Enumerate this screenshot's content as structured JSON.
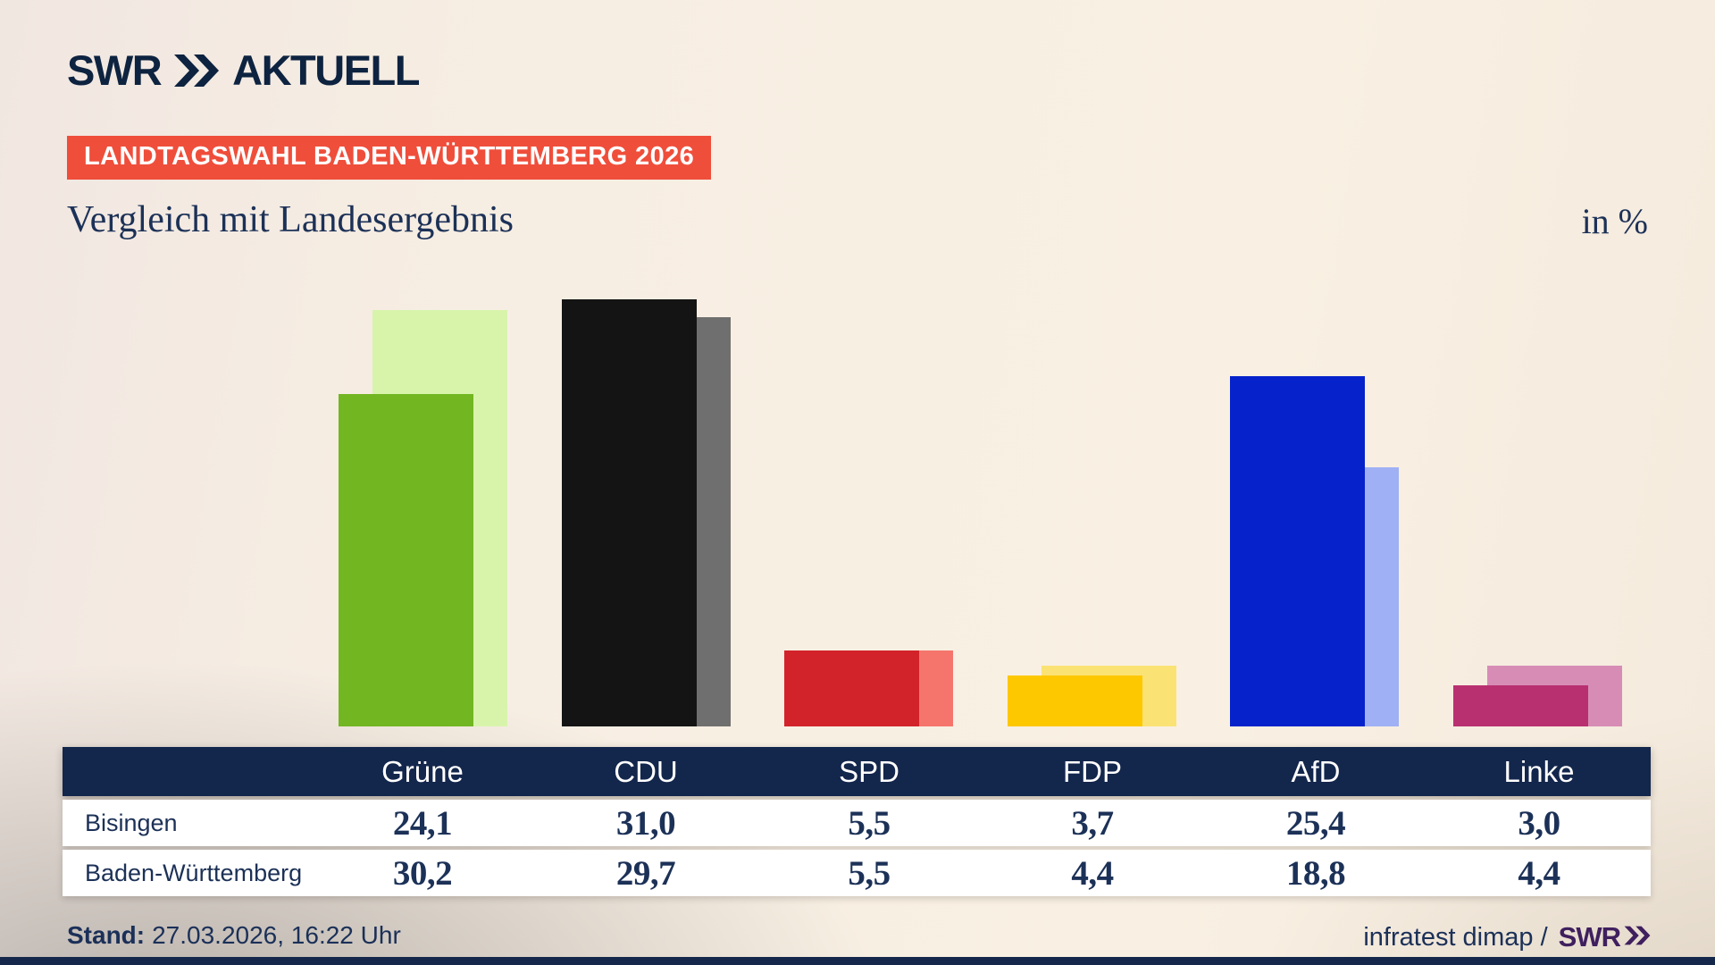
{
  "brand": {
    "swr": "SWR",
    "product": "AKTUELL"
  },
  "banner": {
    "label": "LANDTAGSWAHL BADEN-WÜRTTEMBERG 2026",
    "bg": "#ef4e3b"
  },
  "heading": {
    "title": "Vergleich mit Landesergebnis",
    "unit": "in %"
  },
  "chart_data": {
    "type": "bar",
    "categories": [
      "Grüne",
      "CDU",
      "SPD",
      "FDP",
      "AfD",
      "Linke"
    ],
    "series": [
      {
        "name": "Bisingen",
        "values": [
          24.1,
          31.0,
          5.5,
          3.7,
          25.4,
          3.0
        ]
      },
      {
        "name": "Baden-Württemberg",
        "values": [
          30.2,
          29.7,
          5.5,
          4.4,
          18.8,
          4.4
        ]
      }
    ],
    "party_colors": [
      {
        "party": "Grüne",
        "local": "#72b622",
        "state": "#d8f4ab"
      },
      {
        "party": "CDU",
        "local": "#141414",
        "state": "#6f6f6f"
      },
      {
        "party": "SPD",
        "local": "#d2232a",
        "state": "#f5756c"
      },
      {
        "party": "FDP",
        "local": "#fdc800",
        "state": "#fbe275"
      },
      {
        "party": "AfD",
        "local": "#0622cb",
        "state": "#9fb0f4"
      },
      {
        "party": "Linke",
        "local": "#b93071",
        "state": "#d78cb6"
      }
    ],
    "unit": "%",
    "ylim": [
      0,
      32
    ],
    "grid": false,
    "legend": "none (series values listed in table below chart)",
    "title": "Vergleich mit Landesergebnis"
  },
  "table": {
    "columns": [
      "Grüne",
      "CDU",
      "SPD",
      "FDP",
      "AfD",
      "Linke"
    ],
    "rows": [
      {
        "label": "Bisingen",
        "values": [
          "24,1",
          "31,0",
          "5,5",
          "3,7",
          "25,4",
          "3,0"
        ]
      },
      {
        "label": "Baden-Württemberg",
        "values": [
          "30,2",
          "29,7",
          "5,5",
          "4,4",
          "18,8",
          "4,4"
        ]
      }
    ]
  },
  "footer": {
    "stand_label": "Stand:",
    "stand_value": "27.03.2026, 16:22 Uhr",
    "source": "infratest dimap /",
    "source_brand": "SWR"
  },
  "colors": {
    "banner_bg": "#ef4e3b",
    "text_navy": "#1c3157",
    "table_header_bg": "#13264c",
    "brand_navy": "#0d2340",
    "footer_brand_purple": "#3f1f5e",
    "bottom_strip": "#15274b",
    "background_cream": "#f8efe3"
  }
}
